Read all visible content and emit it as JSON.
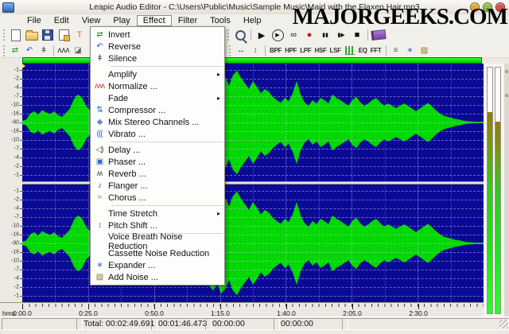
{
  "window": {
    "title": "Leapic Audio Editor - C:\\Users\\Public\\Music\\Sample Music\\Maid with the Flaxen Hair.mp3",
    "controls": [
      "minimize",
      "maximize",
      "close"
    ]
  },
  "watermark": "MAJORGEEKS.COM",
  "menu_bar": {
    "items": [
      "File",
      "Edit",
      "View",
      "Play",
      "Effect",
      "Filter",
      "Tools",
      "Help"
    ],
    "active_index": 4
  },
  "toolbar_file": [
    {
      "name": "new-file",
      "css": "i-new"
    },
    {
      "name": "open-file",
      "css": "i-folder"
    },
    {
      "name": "save-file",
      "css": "i-floppy"
    },
    {
      "name": "file-properties",
      "css": "i-props"
    },
    {
      "name": "tools-hammer",
      "glyph": "Τ",
      "color": "#cc7722"
    },
    {
      "sep": true
    },
    {
      "name": "paste",
      "css": "i-paste"
    }
  ],
  "toolbar_transport": [
    {
      "name": "zoom-out",
      "css": "i-zoom"
    },
    {
      "sep": true
    },
    {
      "name": "play",
      "glyph": "▶",
      "color": "#111111"
    },
    {
      "name": "play-all",
      "glyph": "▶",
      "color": "#111111",
      "circle": true
    },
    {
      "name": "loop",
      "glyph": "∞",
      "color": "#111111"
    },
    {
      "name": "record",
      "glyph": "●",
      "color": "#cc1111"
    },
    {
      "name": "pause",
      "glyph": "▮▮",
      "color": "#111111",
      "small": true
    },
    {
      "name": "step-forward",
      "glyph": "▮▶",
      "color": "#111111",
      "small": true
    },
    {
      "name": "stop",
      "glyph": "■",
      "color": "#111111"
    },
    {
      "sep": true
    },
    {
      "name": "help",
      "css": "i-book"
    }
  ],
  "toolbar_effects": [
    {
      "name": "invert",
      "glyph": "⇄",
      "color": "#2a8f2a"
    },
    {
      "name": "reverse",
      "glyph": "↶",
      "color": "#2255cc"
    },
    {
      "name": "silence",
      "glyph": "ǂ",
      "color": "#333333"
    },
    {
      "sep": true
    },
    {
      "name": "normalize",
      "glyph": "ʌʌʌ",
      "color": "#222222"
    },
    {
      "name": "fade",
      "glyph": "◪",
      "color": "#666666"
    },
    {
      "name": "amplify",
      "glyph": "◀",
      "color": "#cc2222"
    }
  ],
  "toolbar_filters": [
    {
      "name": "time-stretch",
      "glyph": "↔",
      "color": "#333355"
    },
    {
      "name": "pitch-shift",
      "glyph": "↕",
      "color": "#3366cc"
    },
    {
      "sep": true
    },
    {
      "name": "band-pass-filter",
      "text": "BPF"
    },
    {
      "name": "high-pass-filter",
      "text": "HPF"
    },
    {
      "name": "low-pass-filter",
      "text": "LPF"
    },
    {
      "name": "high-shelf-filter",
      "text": "HSF"
    },
    {
      "name": "low-shelf-filter",
      "text": "LSF"
    },
    {
      "name": "equalizer-bars",
      "css": "i-eq"
    },
    {
      "name": "equalizer",
      "text": "EQ"
    },
    {
      "name": "fft-filter",
      "text": "FFT"
    },
    {
      "sep": true
    },
    {
      "name": "noise-reduction-1",
      "glyph": "≡",
      "color": "#555599"
    },
    {
      "name": "expander-tool",
      "glyph": "∗",
      "color": "#4477cc"
    },
    {
      "name": "add-noise-tool",
      "glyph": "▨",
      "color": "#887722"
    }
  ],
  "effect_menu": {
    "items": [
      {
        "label": "Invert",
        "glyph": "⇄",
        "color": "#2a8f2a"
      },
      {
        "label": "Reverse",
        "glyph": "↶",
        "color": "#2255cc"
      },
      {
        "label": "Silence",
        "glyph": "ǂ",
        "color": "#333333",
        "separator_after": true
      },
      {
        "label": "Amplify",
        "submenu": true
      },
      {
        "label": "Normalize ...",
        "glyph": "ʌʌʌ",
        "color": "#cc3333"
      },
      {
        "label": "Fade",
        "submenu": true
      },
      {
        "label": "Compressor ...",
        "glyph": "⇅",
        "color": "#3366cc"
      },
      {
        "label": "Mix Stereo Channels ...",
        "glyph": "◆",
        "color": "#6688cc"
      },
      {
        "label": "Vibrato ...",
        "glyph": "(((",
        "color": "#3366cc",
        "separator_after": true
      },
      {
        "label": "Delay ...",
        "glyph": "◁)",
        "color": "#555533"
      },
      {
        "label": "Phaser ...",
        "glyph": "▣",
        "color": "#3366cc"
      },
      {
        "label": "Reverb ...",
        "glyph": "ʍ",
        "color": "#444444"
      },
      {
        "label": "Flanger ...",
        "glyph": "♪",
        "color": "#3355bb"
      },
      {
        "label": "Chorus ...",
        "glyph": "≈",
        "color": "#778833",
        "separator_after": true
      },
      {
        "label": "Time Stretch",
        "submenu": true
      },
      {
        "label": "Pitch Shift ...",
        "glyph": "↕",
        "color": "#3366cc",
        "separator_after": true
      },
      {
        "label": "Voice Breath Noise Reduction"
      },
      {
        "label": "Cassette Noise Reduction"
      },
      {
        "label": "Expander ...",
        "glyph": "∗",
        "color": "#4477dd"
      },
      {
        "label": "Add Noise ...",
        "glyph": "▨",
        "color": "#887722"
      }
    ]
  },
  "waveform": {
    "bg_color": "#0a0a96",
    "wave_color": "#00d800",
    "db_labels": [
      "-1",
      "-2",
      "-4",
      "-7",
      "-10",
      "-16",
      "-90",
      "-16",
      "-10",
      "-7",
      "-4",
      "-2",
      "-1"
    ],
    "samples": [
      0.03,
      0.05,
      0.16,
      0.2,
      0.14,
      0.22,
      0.18,
      0.15,
      0.2,
      0.13,
      0.1,
      0.17,
      0.25,
      0.42,
      0.5,
      0.45,
      0.3,
      0.22,
      0.3,
      0.26,
      0.18,
      0.14,
      0.2,
      0.27,
      0.36,
      0.32,
      0.25,
      0.18,
      0.22,
      0.3,
      0.26,
      0.2,
      0.16,
      0.22,
      0.28,
      0.32,
      0.33,
      0.28,
      0.24,
      0.28,
      0.33,
      0.38,
      0.42,
      0.48,
      0.53,
      0.5,
      0.62,
      0.75,
      0.85,
      0.7,
      0.9,
      0.82,
      0.66,
      0.85,
      0.93,
      0.8,
      0.7,
      0.6,
      0.74,
      0.64,
      0.52,
      0.6,
      0.55,
      0.46,
      0.4,
      0.35,
      0.44,
      0.38,
      0.52,
      0.74,
      0.5,
      0.36,
      0.3,
      0.4,
      0.34,
      0.44,
      0.4,
      0.34,
      0.5,
      0.44,
      0.4,
      0.35,
      0.3,
      0.4,
      0.46,
      0.36,
      0.3,
      0.34,
      0.4,
      0.44,
      0.36,
      0.3,
      0.34,
      0.3,
      0.26,
      0.3,
      0.34,
      0.3,
      0.25,
      0.2,
      0.25,
      0.3,
      0.35,
      0.29,
      0.22,
      0.16,
      0.12,
      0.1,
      0.08,
      0.06,
      0.05,
      0.03,
      0.02,
      0.015,
      0.012,
      0.01,
      0.01
    ]
  },
  "meters": {
    "left_level": 0.82,
    "right_level": 0.78
  },
  "ruler": {
    "unit": "hms",
    "labels": [
      "0:00.0",
      "0:25.0",
      "0:50.0",
      "1:15.0",
      "1:40.0",
      "2:05.0",
      "2:30.0"
    ]
  },
  "status_bar": {
    "panels": [
      "",
      "Total: 00:02:49.691",
      "00:01:46.473",
      "00:00:00",
      "00:00:00",
      ""
    ]
  }
}
